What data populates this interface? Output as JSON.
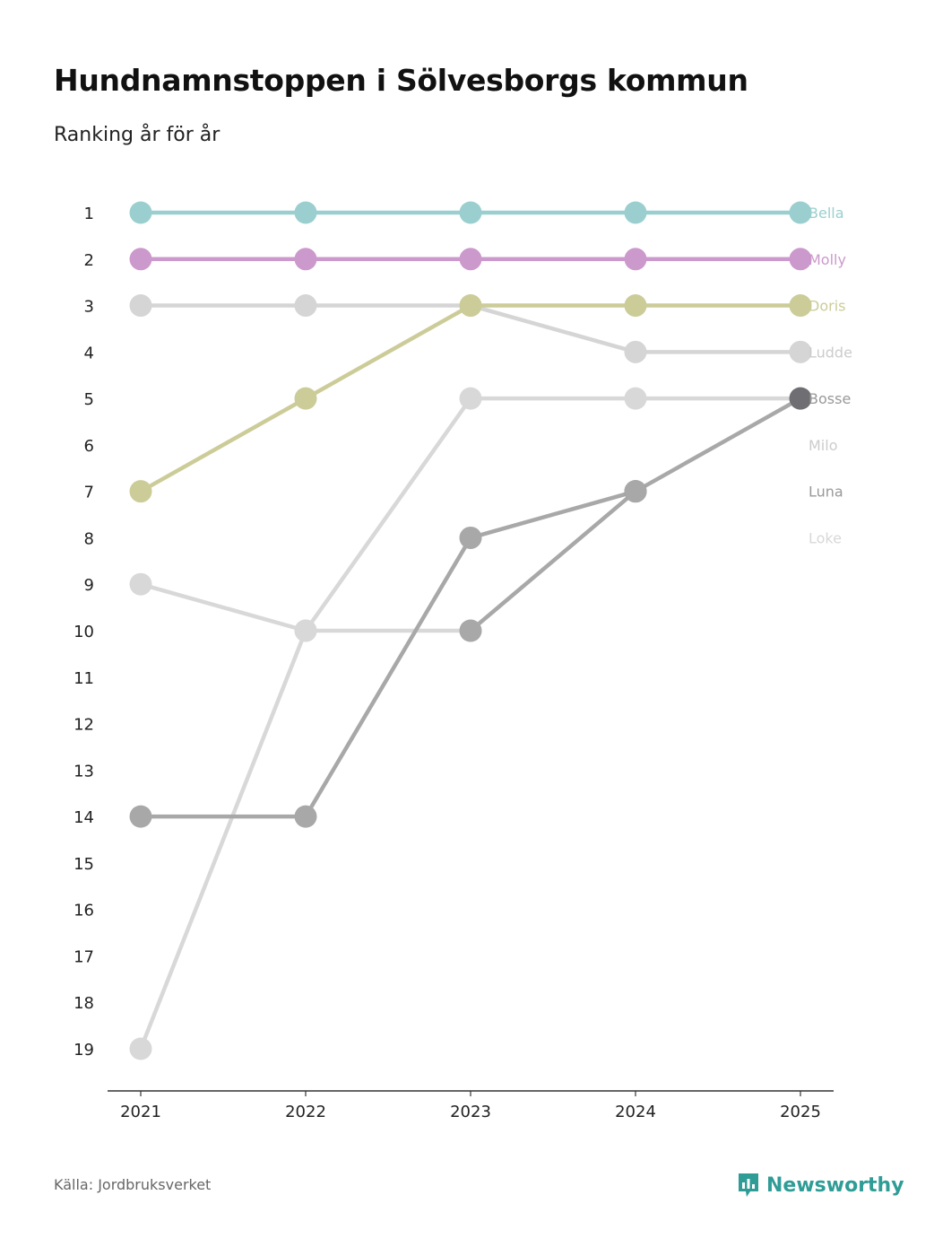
{
  "header": {
    "title": "Hundnamnstoppen i Sölvesborgs kommun",
    "subtitle": "Ranking år för år"
  },
  "footer": {
    "source": "Källa: Jordbruksverket",
    "brand": "Newsworthy"
  },
  "chart_data": {
    "type": "line",
    "title": "Hundnamnstoppen i Sölvesborgs kommun",
    "subtitle": "Ranking år för år",
    "x": [
      "2021",
      "2022",
      "2023",
      "2024",
      "2025"
    ],
    "y_ticks": [
      1,
      2,
      3,
      4,
      5,
      6,
      7,
      8,
      9,
      10,
      11,
      12,
      13,
      14,
      15,
      16,
      17,
      18,
      19
    ],
    "ylim": [
      1,
      19
    ],
    "y_reversed": true,
    "grid": false,
    "legend": "right",
    "series": [
      {
        "name": "Bella",
        "color": "#9bcfcf",
        "label_color": "#9bcfcf",
        "values": [
          1,
          1,
          1,
          1,
          1
        ]
      },
      {
        "name": "Molly",
        "color": "#cc99cc",
        "label_color": "#cc99cc",
        "values": [
          2,
          2,
          2,
          2,
          2
        ]
      },
      {
        "name": "Ludde",
        "color": "#d5d5d5",
        "label_color": "#cccccc",
        "values": [
          3,
          3,
          3,
          4,
          4
        ]
      },
      {
        "name": "Doris",
        "color": "#cccc99",
        "label_color": "#cccc99",
        "values": [
          7,
          5,
          3,
          3,
          3
        ]
      },
      {
        "name": "Milo",
        "color": "#d8d8d8",
        "label_color": "#d0d0d0",
        "values": [
          9,
          10,
          10,
          null,
          null
        ]
      },
      {
        "name": "Loke",
        "color": "#d8d8d8",
        "label_color": "#d8d8d8",
        "values": [
          19,
          10,
          5,
          5,
          5
        ]
      },
      {
        "name": "Luna",
        "color": "#a8a8a8",
        "label_color": "#999999",
        "values": [
          14,
          14,
          8,
          7,
          null
        ]
      },
      {
        "name": "Bosse",
        "color": "#a8a8a8",
        "label_color": "#999999",
        "values": [
          null,
          null,
          10,
          7,
          5
        ]
      }
    ],
    "labels": [
      {
        "name": "Bella",
        "rank": 1,
        "color": "#9bcfcf"
      },
      {
        "name": "Molly",
        "rank": 2,
        "color": "#cc99cc"
      },
      {
        "name": "Doris",
        "rank": 3,
        "color": "#cccc99"
      },
      {
        "name": "Ludde",
        "rank": 4,
        "color": "#cccccc"
      },
      {
        "name": "Bosse",
        "rank": 5,
        "color": "#999999"
      },
      {
        "name": "Milo",
        "rank": 6,
        "color": "#cccccc"
      },
      {
        "name": "Luna",
        "rank": 7,
        "color": "#999999"
      },
      {
        "name": "Loke",
        "rank": 8,
        "color": "#d8d8d8"
      }
    ],
    "highlight_points": [
      {
        "series": "Luna",
        "year": "2024",
        "color": "#6e6e73"
      },
      {
        "series": "Bosse",
        "year": "2025",
        "color": "#6e6e73"
      }
    ]
  }
}
